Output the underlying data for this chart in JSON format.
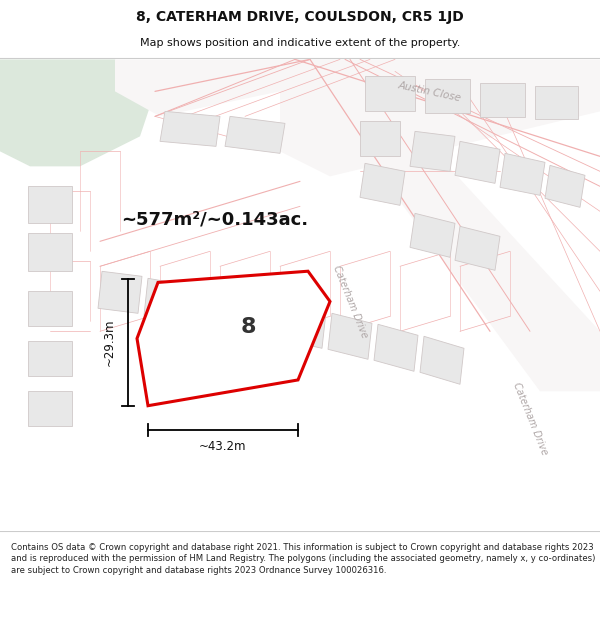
{
  "title_line1": "8, CATERHAM DRIVE, COULSDON, CR5 1JD",
  "title_line2": "Map shows position and indicative extent of the property.",
  "area_label": "~577m²/~0.143ac.",
  "width_label": "~43.2m",
  "height_label": "~29.3m",
  "plot_number": "8",
  "footer_text": "Contains OS data © Crown copyright and database right 2021. This information is subject to Crown copyright and database rights 2023 and is reproduced with the permission of HM Land Registry. The polygons (including the associated geometry, namely x, y co-ordinates) are subject to Crown copyright and database rights 2023 Ordnance Survey 100026316.",
  "map_bg": "#f7f4f4",
  "green_color": "#dce8dc",
  "road_fill": "#f0eaea",
  "building_fill": "#e8e8e8",
  "building_edge": "#d0c8c8",
  "plot_line": "#f0b0b0",
  "highlight_red": "#dd0000",
  "highlight_fill": "#ffffff",
  "dim_color": "#111111",
  "road_label_color": "#b0a8a8",
  "title_color": "#111111",
  "footer_color": "#222222"
}
